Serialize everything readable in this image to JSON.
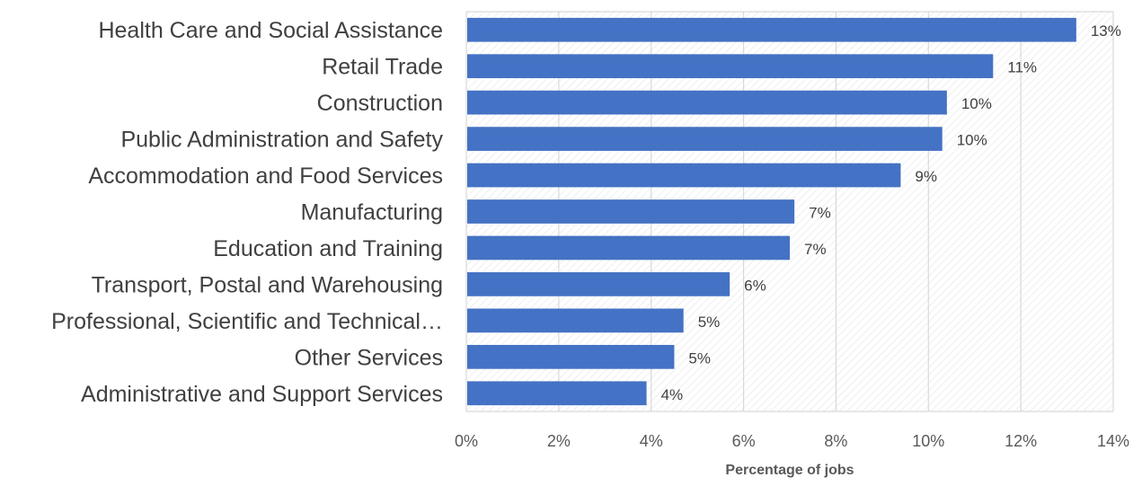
{
  "chart_data": {
    "type": "bar",
    "orientation": "horizontal",
    "categories": [
      "Health Care and Social Assistance",
      "Retail Trade",
      "Construction",
      "Public Administration and Safety",
      "Accommodation and Food Services",
      "Manufacturing",
      "Education and Training",
      "Transport, Postal and Warehousing",
      "Professional, Scientific and Technical…",
      "Other Services",
      "Administrative and Support Services"
    ],
    "values": [
      13.2,
      11.4,
      10.4,
      10.3,
      9.4,
      7.1,
      7.0,
      5.7,
      4.7,
      4.5,
      3.9
    ],
    "data_labels": [
      "13%",
      "11%",
      "10%",
      "10%",
      "9%",
      "7%",
      "7%",
      "6%",
      "5%",
      "5%",
      "4%"
    ],
    "xlabel": "Percentage of jobs",
    "ylabel": "",
    "xlim": [
      0,
      14
    ],
    "x_ticks": [
      0,
      2,
      4,
      6,
      8,
      10,
      12,
      14
    ],
    "x_tick_labels": [
      "0%",
      "2%",
      "4%",
      "6%",
      "8%",
      "10%",
      "12%",
      "14%"
    ],
    "grid": true,
    "legend": "none",
    "colors": {
      "bar": "#4472c4",
      "grid": "#d9d9d9",
      "hatch": "#e0e0e0"
    }
  }
}
